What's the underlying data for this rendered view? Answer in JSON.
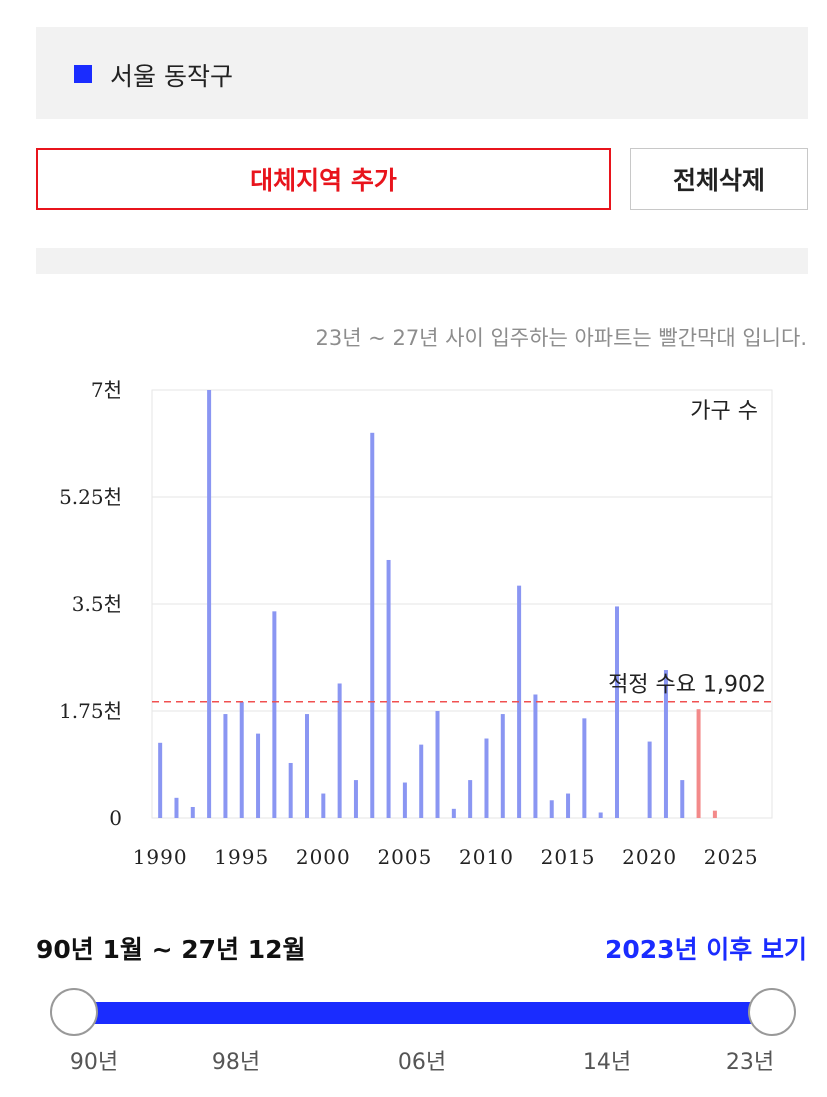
{
  "region": {
    "name": "서울 동작구",
    "swatch_color": "#1a2cff"
  },
  "buttons": {
    "add_label": "대체지역 추가",
    "delete_all_label": "전체삭제"
  },
  "chart_note": "23년 ~ 27년 사이 입주하는 아파트는 빨간막대 입니다.",
  "chart_data": {
    "type": "bar",
    "legend": "가구 수",
    "y_ticks": [
      "0",
      "1.75천",
      "3.5천",
      "5.25천",
      "7천"
    ],
    "ylim": [
      0,
      7000
    ],
    "x_ticks": [
      "1990",
      "1995",
      "2000",
      "2005",
      "2010",
      "2015",
      "2020",
      "2025"
    ],
    "xlim": [
      1989.5,
      2027.5
    ],
    "grid": true,
    "demand_line": {
      "label": "적정 수요 1,902",
      "value": 1902,
      "color": "#f05050"
    },
    "colors": {
      "past": "#8a96f2",
      "future": "#f38a8a"
    },
    "series": [
      {
        "values": [
          {
            "x": 1990,
            "y": 1230
          },
          {
            "x": 1991,
            "y": 330
          },
          {
            "x": 1992,
            "y": 180
          },
          {
            "x": 1993,
            "y": 7000
          },
          {
            "x": 1994,
            "y": 1700
          },
          {
            "x": 1995,
            "y": 1900
          },
          {
            "x": 1996,
            "y": 1380
          },
          {
            "x": 1997,
            "y": 3380
          },
          {
            "x": 1998,
            "y": 900
          },
          {
            "x": 1999,
            "y": 1700
          },
          {
            "x": 2000,
            "y": 400
          },
          {
            "x": 2001,
            "y": 2200
          },
          {
            "x": 2002,
            "y": 620
          },
          {
            "x": 2003,
            "y": 6300
          },
          {
            "x": 2004,
            "y": 4220
          },
          {
            "x": 2005,
            "y": 580
          },
          {
            "x": 2006,
            "y": 1200
          },
          {
            "x": 2007,
            "y": 1750
          },
          {
            "x": 2008,
            "y": 150
          },
          {
            "x": 2009,
            "y": 620
          },
          {
            "x": 2010,
            "y": 1300
          },
          {
            "x": 2011,
            "y": 1700
          },
          {
            "x": 2012,
            "y": 3800
          },
          {
            "x": 2013,
            "y": 2020
          },
          {
            "x": 2014,
            "y": 290
          },
          {
            "x": 2015,
            "y": 400
          },
          {
            "x": 2016,
            "y": 1630
          },
          {
            "x": 2017,
            "y": 90
          },
          {
            "x": 2018,
            "y": 3460
          },
          {
            "x": 2020,
            "y": 1250
          },
          {
            "x": 2021,
            "y": 2420
          },
          {
            "x": 2022,
            "y": 620
          }
        ]
      },
      {
        "values": [
          {
            "x": 2023,
            "y": 1780
          },
          {
            "x": 2024,
            "y": 120
          }
        ]
      }
    ]
  },
  "range": {
    "label": "90년 1월 ~ 27년 12월",
    "after_link": "2023년 이후 보기"
  },
  "slider": {
    "labels": [
      "90년",
      "98년",
      "06년",
      "14년",
      "23년"
    ],
    "accent": "#1a2cff"
  }
}
